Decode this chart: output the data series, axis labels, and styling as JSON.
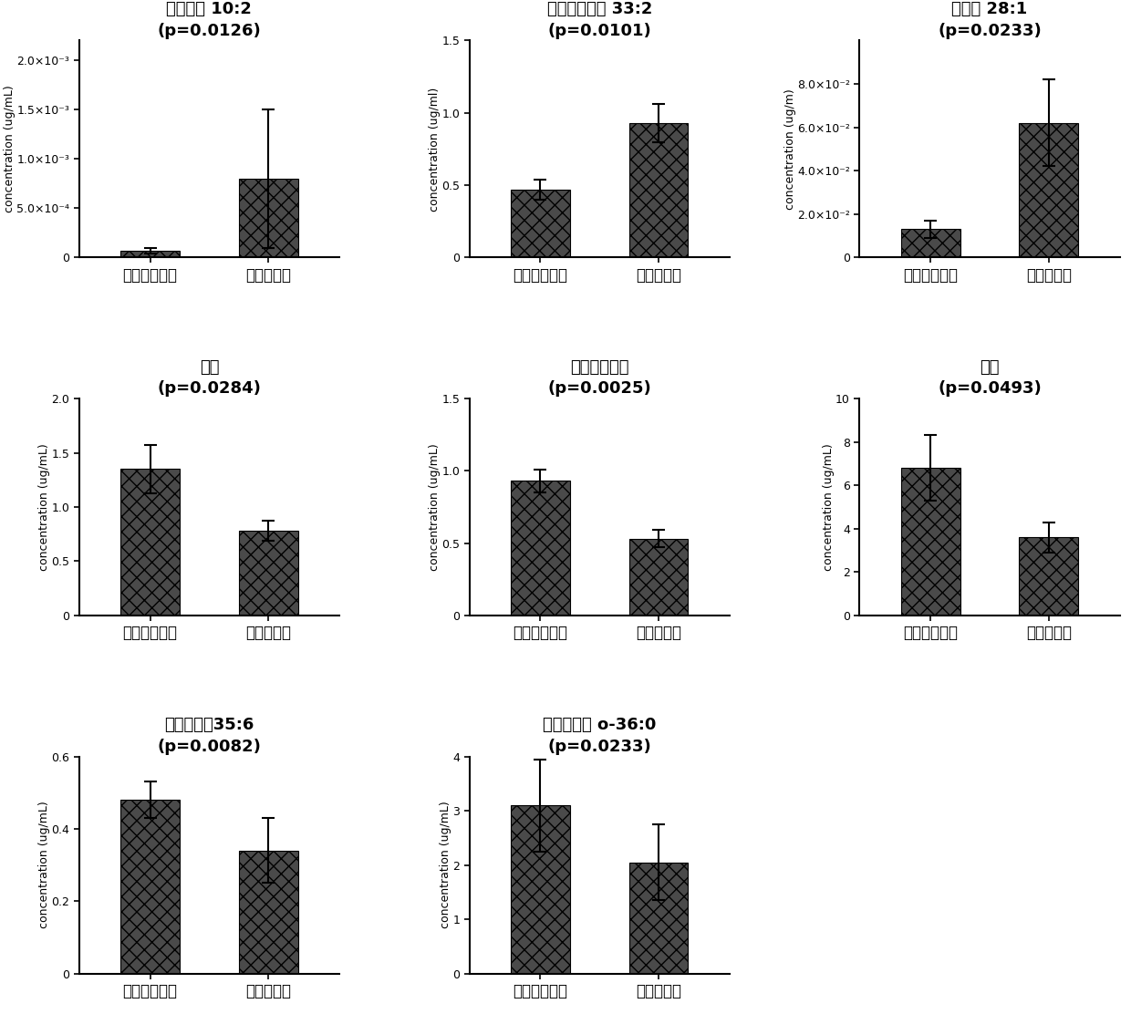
{
  "charts": [
    {
      "title": "酰基肉碱 10:2\n(p=0.0126)",
      "ylabel": "concentration (ug/mL)",
      "categories": [
        "结核性胸膜炎",
        "恶性胸膜炎"
      ],
      "values": [
        7e-05,
        0.0008
      ],
      "errors": [
        3e-05,
        0.0007
      ],
      "ylim": [
        0,
        0.0022
      ],
      "yticks": [
        0,
        0.0005,
        0.001,
        0.0015,
        0.002
      ],
      "ytick_labels": [
        "0",
        "5.0×10⁻⁴",
        "1.0×10⁻³",
        "1.5×10⁻³",
        "2.0×10⁻³"
      ]
    },
    {
      "title": "磷脂酰乙醇胺 33:2\n(p=0.0101)",
      "ylabel": "concentration (ug/ml)",
      "categories": [
        "结核性胸膜炎",
        "恶性胸膜炎"
      ],
      "values": [
        0.47,
        0.93
      ],
      "errors": [
        0.07,
        0.13
      ],
      "ylim": [
        0,
        1.5
      ],
      "yticks": [
        0,
        0.5,
        1.0,
        1.5
      ],
      "ytick_labels": [
        "0",
        "0.5",
        "1.0",
        "1.5"
      ]
    },
    {
      "title": "鞘磷脂 28:1\n(p=0.0233)",
      "ylabel": "concentration (ug/m)",
      "categories": [
        "结核性胸膜炎",
        "恶性胸膜炎"
      ],
      "values": [
        0.013,
        0.062
      ],
      "errors": [
        0.004,
        0.02
      ],
      "ylim": [
        0,
        0.1
      ],
      "yticks": [
        0,
        0.02,
        0.04,
        0.06,
        0.08
      ],
      "ytick_labels": [
        "0",
        "2.0×10⁻²",
        "4.0×10⁻²",
        "6.0×10⁻²",
        "8.0×10⁻²"
      ]
    },
    {
      "title": "胆碱\n(p=0.0284)",
      "ylabel": "concentration (ug/mL)",
      "categories": [
        "结核性胸膜炎",
        "恶性胸膜炎"
      ],
      "values": [
        1.35,
        0.78
      ],
      "errors": [
        0.22,
        0.09
      ],
      "ylim": [
        0,
        2.0
      ],
      "yticks": [
        0,
        0.5,
        1.0,
        1.5,
        2.0
      ],
      "ytick_labels": [
        "0",
        "0.5",
        "1.0",
        "1.5",
        "2.0"
      ]
    },
    {
      "title": "二甲基甘氨酸\n(p=0.0025)",
      "ylabel": "concentration (ug/mL)",
      "categories": [
        "结核性胸膜炎",
        "恶性胸膜炎"
      ],
      "values": [
        0.93,
        0.53
      ],
      "errors": [
        0.08,
        0.06
      ],
      "ylim": [
        0,
        1.5
      ],
      "yticks": [
        0,
        0.5,
        1.0,
        1.5
      ],
      "ytick_labels": [
        "0",
        "0.5",
        "1.0",
        "1.5"
      ]
    },
    {
      "title": "油酸\n(p=0.0493)",
      "ylabel": "concentration (ug/mL)",
      "categories": [
        "结核性胸膜炎",
        "恶性胸膜炎"
      ],
      "values": [
        6.8,
        3.6
      ],
      "errors": [
        1.5,
        0.7
      ],
      "ylim": [
        0,
        10
      ],
      "yticks": [
        0,
        2,
        4,
        6,
        8,
        10
      ],
      "ytick_labels": [
        "0",
        "2",
        "4",
        "6",
        "8",
        "10"
      ]
    },
    {
      "title": "磷脂酰胆碱35:6\n(p=0.0082)",
      "ylabel": "concentration (ug/mL)",
      "categories": [
        "结核性胸膜炎",
        "恶性胸膜炎"
      ],
      "values": [
        0.48,
        0.34
      ],
      "errors": [
        0.05,
        0.09
      ],
      "ylim": [
        0,
        0.6
      ],
      "yticks": [
        0,
        0.2,
        0.4,
        0.6
      ],
      "ytick_labels": [
        "0",
        "0.2",
        "0.4",
        "0.6"
      ]
    },
    {
      "title": "磷脂酰胆碱 o-36:0\n(p=0.0233)",
      "ylabel": "concentration (ug/mL)",
      "categories": [
        "结核性胸膜炎",
        "恶性胸膜炎"
      ],
      "values": [
        3.1,
        2.05
      ],
      "errors": [
        0.85,
        0.7
      ],
      "ylim": [
        0,
        4
      ],
      "yticks": [
        0,
        1,
        2,
        3,
        4
      ],
      "ytick_labels": [
        "0",
        "1",
        "2",
        "3",
        "4"
      ]
    }
  ],
  "background_color": "#ffffff",
  "text_color": "#000000",
  "title_fontsize": 13,
  "ylabel_fontsize": 9,
  "tick_fontsize": 9,
  "xlabel_fontsize": 12
}
